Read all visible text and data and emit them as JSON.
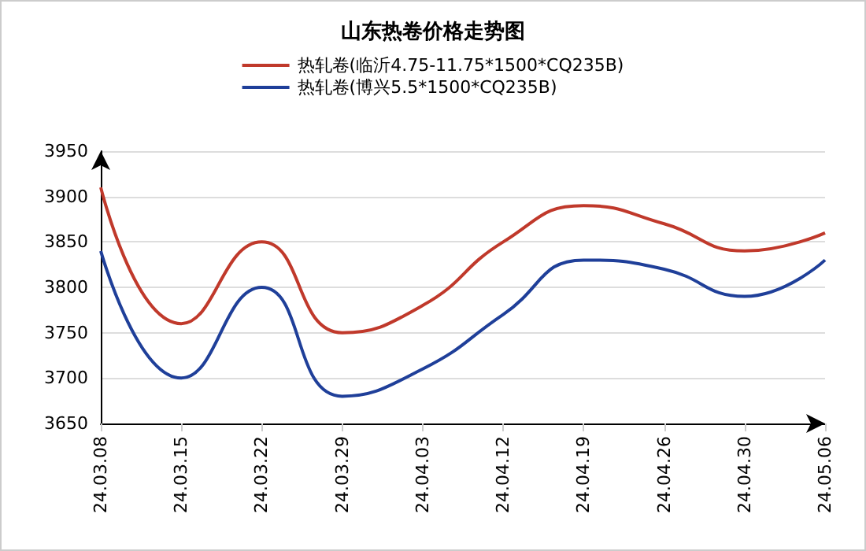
{
  "chart_data": {
    "type": "line",
    "title": "山东热卷价格走势图",
    "categories": [
      "24.03.08",
      "24.03.15",
      "24.03.22",
      "24.03.29",
      "24.04.03",
      "24.04.12",
      "24.04.19",
      "24.04.26",
      "24.04.30",
      "24.05.06"
    ],
    "series": [
      {
        "name": "热轧卷(临沂4.75-11.75*1500*CQ235B)",
        "color": "#c0392b",
        "values": [
          3910,
          3760,
          3850,
          3750,
          3780,
          3850,
          3890,
          3870,
          3840,
          3860
        ]
      },
      {
        "name": "热轧卷(博兴5.5*1500*CQ235B)",
        "color": "#1f3f99",
        "values": [
          3840,
          3700,
          3800,
          3680,
          3710,
          3770,
          3830,
          3820,
          3790,
          3830
        ]
      }
    ],
    "ylim": [
      3650,
      3950
    ],
    "yticks": [
      3650,
      3700,
      3750,
      3800,
      3850,
      3900,
      3950
    ],
    "grid": "y",
    "legend": "top",
    "marker": "none",
    "line_style": "solid"
  }
}
